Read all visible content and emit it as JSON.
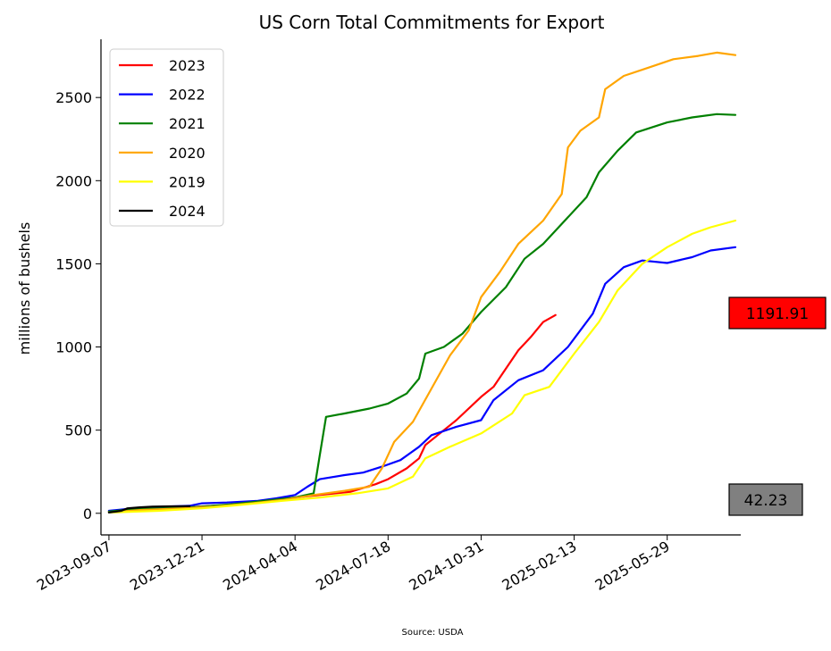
{
  "chart_data": {
    "type": "line",
    "title": "US Corn Total Commitments for Export",
    "xlabel": "",
    "ylabel": "millions of bushels",
    "source": "Source: USDA",
    "x_range": [
      "2023-08-29",
      "2025-08-20"
    ],
    "ylim": [
      -130,
      2850
    ],
    "x_ticks": [
      "2023-09-07",
      "2023-12-21",
      "2024-04-04",
      "2024-07-18",
      "2024-10-31",
      "2025-02-13",
      "2025-05-29"
    ],
    "y_ticks": [
      0,
      500,
      1000,
      1500,
      2000,
      2500
    ],
    "grid": false,
    "legend_position": "top-left",
    "value_boxes": [
      {
        "label": "1191.91",
        "value": 1191.91,
        "fill": "#ff0000"
      },
      {
        "label": "42.23",
        "value": 42.23,
        "fill": "#808080"
      }
    ],
    "series": [
      {
        "name": "2023",
        "color": "#ff0000",
        "points": [
          [
            "2023-09-07",
            10
          ],
          [
            "2023-10-05",
            25
          ],
          [
            "2023-11-02",
            30
          ],
          [
            "2023-11-30",
            35
          ],
          [
            "2024-01-04",
            45
          ],
          [
            "2024-02-01",
            55
          ],
          [
            "2024-03-07",
            80
          ],
          [
            "2024-04-04",
            95
          ],
          [
            "2024-05-02",
            110
          ],
          [
            "2024-06-06",
            130
          ],
          [
            "2024-07-04",
            175
          ],
          [
            "2024-07-18",
            205
          ],
          [
            "2024-08-08",
            270
          ],
          [
            "2024-08-22",
            330
          ],
          [
            "2024-08-29",
            410
          ],
          [
            "2024-09-12",
            470
          ],
          [
            "2024-10-03",
            560
          ],
          [
            "2024-10-31",
            700
          ],
          [
            "2024-11-14",
            760
          ],
          [
            "2024-11-28",
            870
          ],
          [
            "2024-12-12",
            980
          ],
          [
            "2024-12-26",
            1060
          ],
          [
            "2025-01-09",
            1150
          ],
          [
            "2025-01-23",
            1191.91
          ]
        ]
      },
      {
        "name": "2022",
        "color": "#0000ff",
        "points": [
          [
            "2023-09-07",
            15
          ],
          [
            "2023-10-05",
            30
          ],
          [
            "2023-11-09",
            40
          ],
          [
            "2023-12-07",
            45
          ],
          [
            "2023-12-21",
            60
          ],
          [
            "2024-01-18",
            65
          ],
          [
            "2024-02-22",
            75
          ],
          [
            "2024-03-14",
            90
          ],
          [
            "2024-04-04",
            110
          ],
          [
            "2024-04-18",
            160
          ],
          [
            "2024-05-02",
            205
          ],
          [
            "2024-05-30",
            230
          ],
          [
            "2024-06-20",
            245
          ],
          [
            "2024-07-11",
            280
          ],
          [
            "2024-08-01",
            320
          ],
          [
            "2024-08-22",
            400
          ],
          [
            "2024-09-05",
            470
          ],
          [
            "2024-10-03",
            520
          ],
          [
            "2024-10-31",
            560
          ],
          [
            "2024-11-14",
            680
          ],
          [
            "2024-12-12",
            800
          ],
          [
            "2025-01-09",
            860
          ],
          [
            "2025-02-06",
            1000
          ],
          [
            "2025-03-06",
            1200
          ],
          [
            "2025-03-20",
            1380
          ],
          [
            "2025-04-10",
            1480
          ],
          [
            "2025-05-01",
            1520
          ],
          [
            "2025-05-29",
            1505
          ],
          [
            "2025-06-26",
            1540
          ],
          [
            "2025-07-17",
            1580
          ],
          [
            "2025-08-14",
            1600
          ]
        ]
      },
      {
        "name": "2021",
        "color": "#008000",
        "points": [
          [
            "2023-09-07",
            10
          ],
          [
            "2023-10-05",
            25
          ],
          [
            "2023-11-09",
            30
          ],
          [
            "2023-12-21",
            40
          ],
          [
            "2024-01-25",
            55
          ],
          [
            "2024-02-29",
            75
          ],
          [
            "2024-04-04",
            95
          ],
          [
            "2024-04-25",
            120
          ],
          [
            "2024-05-02",
            350
          ],
          [
            "2024-05-09",
            580
          ],
          [
            "2024-05-30",
            600
          ],
          [
            "2024-06-27",
            630
          ],
          [
            "2024-07-18",
            660
          ],
          [
            "2024-08-08",
            720
          ],
          [
            "2024-08-22",
            810
          ],
          [
            "2024-08-29",
            960
          ],
          [
            "2024-09-19",
            1000
          ],
          [
            "2024-10-10",
            1080
          ],
          [
            "2024-10-31",
            1210
          ],
          [
            "2024-11-28",
            1360
          ],
          [
            "2024-12-19",
            1530
          ],
          [
            "2025-01-09",
            1620
          ],
          [
            "2025-02-06",
            1780
          ],
          [
            "2025-02-27",
            1900
          ],
          [
            "2025-03-13",
            2050
          ],
          [
            "2025-04-03",
            2180
          ],
          [
            "2025-04-24",
            2290
          ],
          [
            "2025-05-29",
            2350
          ],
          [
            "2025-06-26",
            2380
          ],
          [
            "2025-07-24",
            2400
          ],
          [
            "2025-08-14",
            2395
          ]
        ]
      },
      {
        "name": "2020",
        "color": "#ffa500",
        "points": [
          [
            "2023-09-07",
            5
          ],
          [
            "2023-10-12",
            20
          ],
          [
            "2023-11-30",
            30
          ],
          [
            "2024-01-04",
            40
          ],
          [
            "2024-02-15",
            60
          ],
          [
            "2024-03-21",
            80
          ],
          [
            "2024-04-25",
            110
          ],
          [
            "2024-05-30",
            135
          ],
          [
            "2024-06-27",
            160
          ],
          [
            "2024-07-11",
            270
          ],
          [
            "2024-07-25",
            430
          ],
          [
            "2024-08-15",
            550
          ],
          [
            "2024-09-05",
            750
          ],
          [
            "2024-09-26",
            950
          ],
          [
            "2024-10-17",
            1100
          ],
          [
            "2024-10-31",
            1300
          ],
          [
            "2024-11-21",
            1450
          ],
          [
            "2024-12-12",
            1620
          ],
          [
            "2025-01-09",
            1760
          ],
          [
            "2025-01-30",
            1920
          ],
          [
            "2025-02-06",
            2200
          ],
          [
            "2025-02-20",
            2300
          ],
          [
            "2025-03-13",
            2380
          ],
          [
            "2025-03-20",
            2550
          ],
          [
            "2025-04-10",
            2630
          ],
          [
            "2025-05-08",
            2680
          ],
          [
            "2025-06-05",
            2730
          ],
          [
            "2025-07-03",
            2750
          ],
          [
            "2025-07-24",
            2770
          ],
          [
            "2025-08-14",
            2755
          ]
        ]
      },
      {
        "name": "2019",
        "color": "#ffff00",
        "points": [
          [
            "2023-09-07",
            5
          ],
          [
            "2023-11-02",
            15
          ],
          [
            "2023-12-21",
            30
          ],
          [
            "2024-02-01",
            50
          ],
          [
            "2024-03-21",
            75
          ],
          [
            "2024-05-02",
            95
          ],
          [
            "2024-06-13",
            120
          ],
          [
            "2024-07-18",
            150
          ],
          [
            "2024-08-15",
            220
          ],
          [
            "2024-08-29",
            330
          ],
          [
            "2024-09-26",
            400
          ],
          [
            "2024-10-31",
            480
          ],
          [
            "2024-12-05",
            600
          ],
          [
            "2024-12-19",
            710
          ],
          [
            "2025-01-16",
            760
          ],
          [
            "2025-02-13",
            960
          ],
          [
            "2025-03-13",
            1150
          ],
          [
            "2025-04-03",
            1340
          ],
          [
            "2025-05-01",
            1500
          ],
          [
            "2025-05-29",
            1600
          ],
          [
            "2025-06-26",
            1680
          ],
          [
            "2025-07-17",
            1720
          ],
          [
            "2025-08-14",
            1760
          ]
        ]
      },
      {
        "name": "2024",
        "color": "#000000",
        "points": [
          [
            "2023-09-07",
            5
          ],
          [
            "2023-09-21",
            15
          ],
          [
            "2023-09-28",
            30
          ],
          [
            "2023-10-12",
            36
          ],
          [
            "2023-10-26",
            40
          ],
          [
            "2023-11-16",
            42
          ],
          [
            "2023-12-07",
            42.23
          ]
        ]
      }
    ]
  }
}
